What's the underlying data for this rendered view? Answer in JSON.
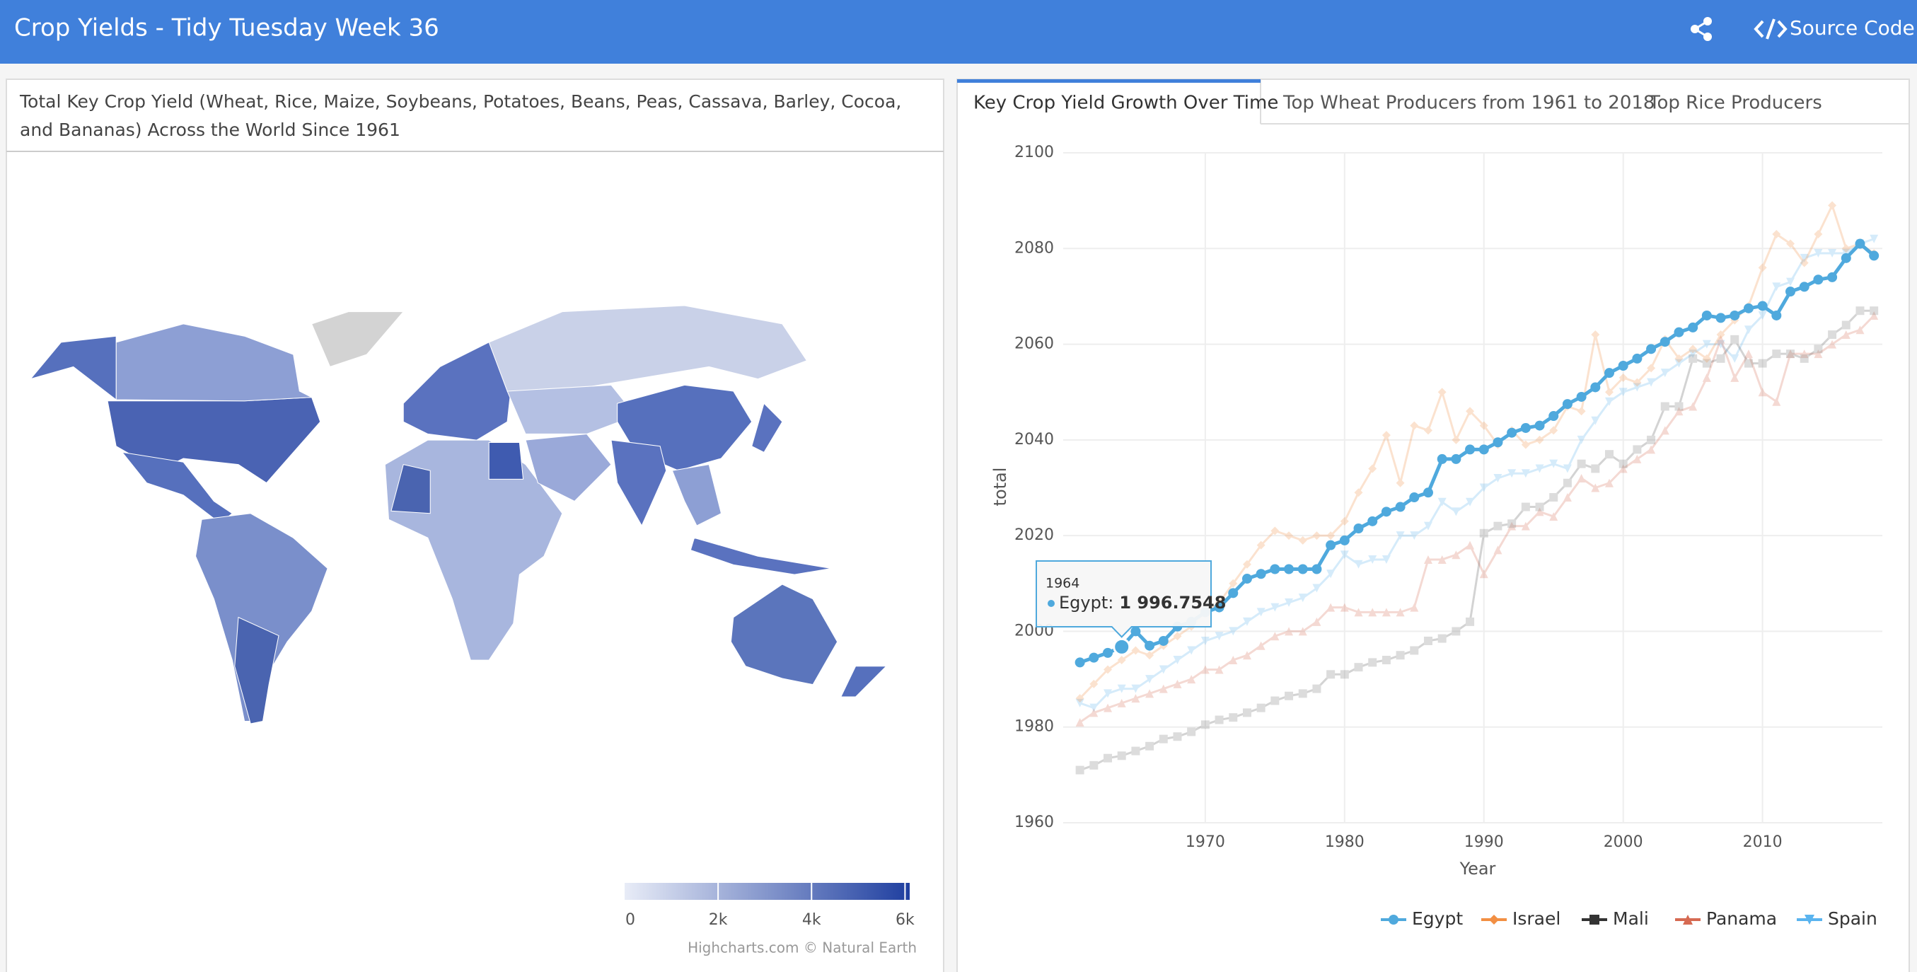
{
  "header": {
    "title": "Crop Yields - Tidy Tuesday Week 36",
    "source_link": "Source Code"
  },
  "map_panel": {
    "title": "Total Key Crop Yield (Wheat, Rice, Maize, Soybeans, Potatoes, Beans, Peas, Cassava, Barley, Cocoa, and Bananas) Across the World Since 1961",
    "colorlim": [
      0,
      6100
    ],
    "colorticks": [
      0,
      {
        "value": 2000,
        "label": "2k"
      },
      {
        "value": 4000,
        "label": "4k"
      },
      {
        "value": 6000,
        "label": "6k"
      }
    ],
    "credits": "Highcharts.com © Natural Earth"
  },
  "tabs": [
    "Key Crop Yield Growth Over Time",
    "Top Wheat Producers from 1961 to 2018",
    "Top Rice Producers"
  ],
  "chart_data": {
    "type": "line",
    "xlabel": "Year",
    "ylabel": "total",
    "x": [
      1961,
      1962,
      1963,
      1964,
      1965,
      1966,
      1967,
      1968,
      1969,
      1970,
      1971,
      1972,
      1973,
      1974,
      1975,
      1976,
      1977,
      1978,
      1979,
      1980,
      1981,
      1982,
      1983,
      1984,
      1985,
      1986,
      1987,
      1988,
      1989,
      1990,
      1991,
      1992,
      1993,
      1994,
      1995,
      1996,
      1997,
      1998,
      1999,
      2000,
      2001,
      2002,
      2003,
      2004,
      2005,
      2006,
      2007,
      2008,
      2009,
      2010,
      2011,
      2012,
      2013,
      2014,
      2015,
      2016,
      2017,
      2018
    ],
    "xlim": [
      1959.8,
      2018.6
    ],
    "xticks": [
      1970,
      1980,
      1990,
      2000,
      2010
    ],
    "ylim": [
      1960,
      2100
    ],
    "yticks": [
      1960,
      1980,
      2000,
      2020,
      2040,
      2060,
      2080,
      2100
    ],
    "grid": true,
    "series": [
      {
        "name": "Egypt",
        "color": "#4fa9dd",
        "marker": "circle",
        "values": [
          1993.5,
          1994.5,
          1995.5,
          1996.7548,
          2000,
          1997,
          1998,
          2001,
          2002,
          2004,
          2005,
          2008,
          2011,
          2012,
          2013,
          2013,
          2013,
          2013,
          2018,
          2019,
          2021.5,
          2023,
          2025,
          2026,
          2028,
          2029,
          2036,
          2036,
          2038,
          2038,
          2039.5,
          2041.5,
          2042.5,
          2043,
          2045,
          2047.5,
          2049,
          2051,
          2054,
          2055.5,
          2057,
          2059,
          2060.5,
          2062.5,
          2063.5,
          2066,
          2065.5,
          2066,
          2067.5,
          2068,
          2066,
          2071,
          2072,
          2073.5,
          2074,
          2078,
          2081,
          2078.5
        ]
      },
      {
        "name": "Israel",
        "color": "#f28f43",
        "marker": "diamond",
        "values": [
          1986,
          1989,
          1992,
          1994,
          1996,
          1995,
          1997,
          1999,
          2001,
          2004,
          2006,
          2010,
          2014,
          2018,
          2021,
          2020,
          2019,
          2020,
          2020,
          2023,
          2029,
          2034,
          2041,
          2031,
          2043,
          2042,
          2050,
          2040,
          2046,
          2043,
          2039,
          2042,
          2039,
          2040,
          2042,
          2047,
          2046,
          2062,
          2050,
          2053,
          2052,
          2055,
          2061,
          2057,
          2059,
          2057,
          2062,
          2065,
          2068,
          2076,
          2083,
          2081,
          2077,
          2083,
          2089,
          2080,
          2081,
          2079
        ]
      },
      {
        "name": "Mali",
        "color": "#333333",
        "marker": "square",
        "values": [
          1971,
          1972,
          1973.5,
          1974,
          1975,
          1976,
          1977.5,
          1978,
          1979,
          1980.5,
          1981.5,
          1982,
          1983,
          1984,
          1985.5,
          1986.5,
          1987,
          1988,
          1991,
          1991,
          1992.5,
          1993.5,
          1994,
          1995,
          1996,
          1998,
          1998.5,
          2000,
          2002,
          2020.5,
          2022,
          2022.5,
          2026,
          2026,
          2028,
          2031,
          2035,
          2034,
          2037,
          2035,
          2038,
          2040,
          2047,
          2047,
          2057,
          2056,
          2057,
          2061,
          2056,
          2056,
          2058,
          2058,
          2057,
          2059,
          2062,
          2064,
          2067,
          2067
        ]
      },
      {
        "name": "Panama",
        "color": "#d66a52",
        "marker": "triangle",
        "values": [
          1981,
          1983,
          1984,
          1985,
          1986,
          1987,
          1988,
          1989,
          1990,
          1992,
          1992,
          1994,
          1995,
          1997,
          1999,
          2000,
          2000,
          2002,
          2005,
          2005,
          2004,
          2004,
          2004,
          2004,
          2005,
          2015,
          2015,
          2016,
          2018,
          2012,
          2017,
          2022,
          2022,
          2025,
          2024,
          2028,
          2032,
          2030,
          2031,
          2034,
          2036,
          2038,
          2042,
          2046,
          2047,
          2053,
          2061,
          2053,
          2058,
          2050,
          2048,
          2058,
          2058,
          2058,
          2060,
          2062,
          2063,
          2066
        ]
      },
      {
        "name": "Spain",
        "color": "#5ab4ef",
        "marker": "triangle-down",
        "values": [
          1985,
          1984,
          1987,
          1988,
          1988,
          1990,
          1992,
          1994,
          1996,
          1998,
          1999,
          2000,
          2002,
          2004,
          2005,
          2006,
          2007,
          2009,
          2012,
          2016,
          2014,
          2015,
          2015,
          2020,
          2020,
          2022,
          2027,
          2025,
          2027,
          2030,
          2032,
          2033,
          2033,
          2034,
          2035,
          2034,
          2040,
          2044,
          2048,
          2050,
          2051,
          2052,
          2054,
          2056,
          2058,
          2060,
          2060,
          2057,
          2063,
          2066,
          2072,
          2073,
          2078,
          2079,
          2079,
          2079,
          2081,
          2082
        ]
      }
    ],
    "tooltip": {
      "x": "1964",
      "label": "Egypt:",
      "value": "1 996.7548"
    }
  }
}
